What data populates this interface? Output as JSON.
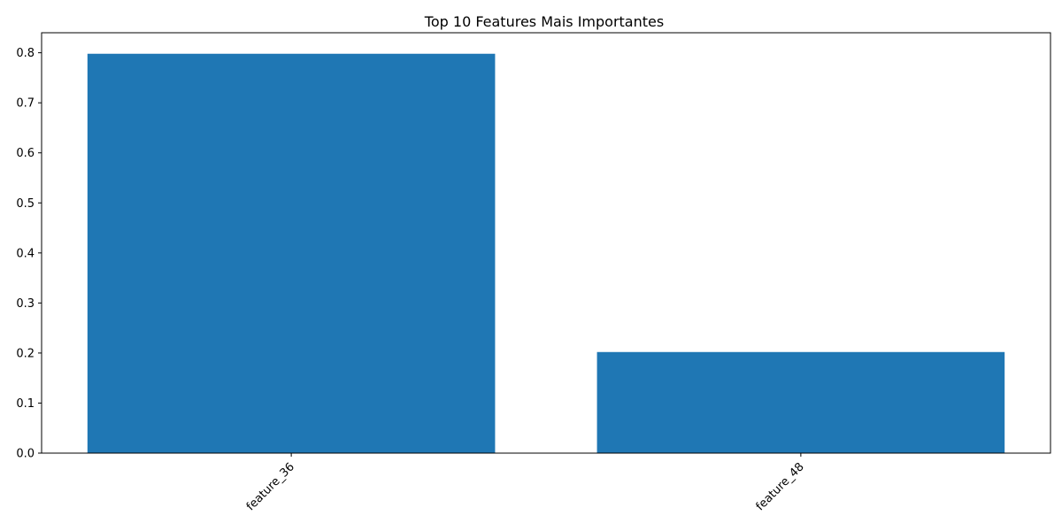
{
  "chart_data": {
    "type": "bar",
    "title": "Top 10 Features Mais Importantes",
    "xlabel": "",
    "ylabel": "",
    "categories": [
      "feature_36",
      "feature_48"
    ],
    "values": [
      0.798,
      0.202
    ],
    "ylim": [
      0,
      0.84
    ],
    "yticks": [
      0.0,
      0.1,
      0.2,
      0.3,
      0.4,
      0.5,
      0.6,
      0.7,
      0.8
    ],
    "ytick_labels": [
      "0.0",
      "0.1",
      "0.2",
      "0.3",
      "0.4",
      "0.5",
      "0.6",
      "0.7",
      "0.8"
    ],
    "xtick_rotation_deg": 45,
    "bar_color": "#1f77b4",
    "grid": false,
    "legend": "none"
  }
}
